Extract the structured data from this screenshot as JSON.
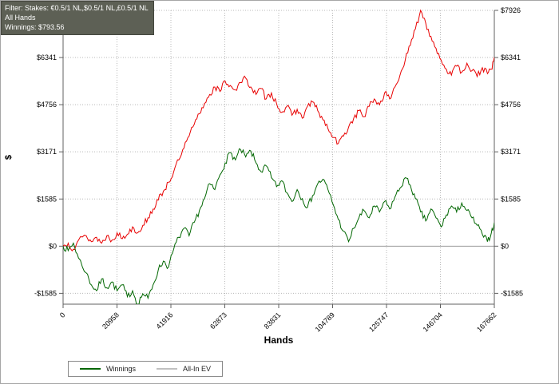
{
  "info_box": {
    "filter_line": "Filter: Stakes: €0.5/1 NL,$0.5/1 NL,£0.5/1 NL",
    "hands_line": "All Hands",
    "winnings_line": "Winnings: $793.56",
    "background": "#5d6055",
    "text_color": "#ffffff"
  },
  "chart_data": {
    "type": "line",
    "title": "",
    "xlabel": "Hands",
    "ylabel": "$",
    "xlim": [
      0,
      167662
    ],
    "ylim": [
      -1950,
      7926
    ],
    "x_ticks": [
      0,
      20958,
      41916,
      62873,
      83831,
      104789,
      125747,
      146704,
      167662
    ],
    "x_tick_labels": [
      "0",
      "20958",
      "41916",
      "62873",
      "83831",
      "104789",
      "125747",
      "146704",
      "167662"
    ],
    "y_ticks": [
      -1585,
      0,
      1585,
      3171,
      4756,
      6341,
      7926
    ],
    "y_tick_labels": [
      "-$1585",
      "$0",
      "$1585",
      "$3171",
      "$4756",
      "$6341",
      "$7926"
    ],
    "grid": "dotted",
    "zero_line": true,
    "legend_position": "bottom-left",
    "noise_amplitude": 110,
    "colors": {
      "grid": "#b8b8b8",
      "axis": "#606060",
      "zero_line": "#999999",
      "tick_text": "#000000"
    },
    "series": [
      {
        "name": "Winnings",
        "color": "#006600",
        "legend_color": "#006600",
        "final_value": 793.56,
        "x": [
          0,
          2000,
          4000,
          6000,
          9000,
          11000,
          13000,
          15000,
          17000,
          19000,
          21000,
          23000,
          25000,
          27000,
          29000,
          31000,
          33000,
          35000,
          37000,
          39000,
          41000,
          43000,
          45000,
          47000,
          49000,
          51000,
          53000,
          55000,
          57000,
          59000,
          61000,
          63000,
          65000,
          67000,
          69000,
          71000,
          73000,
          75000,
          77000,
          79000,
          81000,
          83000,
          85000,
          87000,
          89000,
          91000,
          93000,
          95000,
          97000,
          99000,
          101000,
          103000,
          105000,
          107000,
          109000,
          111000,
          113000,
          115000,
          117000,
          119000,
          121000,
          123000,
          125000,
          127000,
          129000,
          131000,
          133000,
          135000,
          137000,
          139000,
          141000,
          143000,
          145000,
          147000,
          149000,
          151000,
          153000,
          155000,
          157000,
          159000,
          161000,
          163000,
          165000,
          166500,
          167662
        ],
        "y": [
          0,
          -150,
          100,
          -400,
          -900,
          -1300,
          -1500,
          -1100,
          -1400,
          -1200,
          -1500,
          -1300,
          -1700,
          -1500,
          -1950,
          -1600,
          -1750,
          -1300,
          -800,
          -500,
          -700,
          -100,
          300,
          600,
          350,
          800,
          1200,
          1600,
          2100,
          1900,
          2400,
          2800,
          3150,
          2900,
          3250,
          3000,
          3200,
          2800,
          2500,
          2700,
          2300,
          2000,
          2200,
          1800,
          1500,
          1900,
          1600,
          1300,
          1700,
          2100,
          2250,
          1900,
          1400,
          900,
          500,
          150,
          600,
          950,
          1200,
          950,
          1350,
          1150,
          1500,
          1250,
          1650,
          1950,
          2300,
          2050,
          1600,
          1150,
          850,
          1250,
          950,
          650,
          1050,
          1350,
          1150,
          1450,
          1200,
          950,
          700,
          400,
          150,
          450,
          794
        ]
      },
      {
        "name": "All-In EV",
        "color": "#e80000",
        "legend_color": "#c0c0c0",
        "x": [
          0,
          2000,
          4000,
          6000,
          9000,
          11000,
          13000,
          15000,
          17000,
          19000,
          21000,
          23000,
          25000,
          27000,
          29000,
          31000,
          33000,
          35000,
          37000,
          39000,
          41000,
          43000,
          45000,
          47000,
          49000,
          51000,
          53000,
          55000,
          57000,
          59000,
          61000,
          63000,
          65000,
          67000,
          69000,
          71000,
          73000,
          75000,
          77000,
          79000,
          81000,
          83000,
          85000,
          87000,
          89000,
          91000,
          93000,
          95000,
          97000,
          99000,
          101000,
          103000,
          105000,
          107000,
          109000,
          111000,
          113000,
          115000,
          117000,
          119000,
          121000,
          123000,
          125000,
          127000,
          129000,
          131000,
          133000,
          135000,
          137000,
          139000,
          141000,
          143000,
          145000,
          147000,
          149000,
          151000,
          153000,
          155000,
          157000,
          159000,
          161000,
          163000,
          165000,
          166500,
          167662
        ],
        "y": [
          0,
          100,
          -100,
          200,
          350,
          150,
          300,
          100,
          350,
          200,
          450,
          250,
          400,
          650,
          450,
          700,
          950,
          1250,
          1550,
          1850,
          2150,
          2500,
          2900,
          3300,
          3700,
          4100,
          4450,
          4800,
          5100,
          5350,
          5200,
          5550,
          5400,
          5250,
          5500,
          5650,
          5350,
          5100,
          5300,
          4950,
          5150,
          4800,
          4500,
          4700,
          4400,
          4600,
          4300,
          4700,
          4850,
          4550,
          4250,
          3950,
          3650,
          3450,
          3700,
          4000,
          4300,
          4550,
          4350,
          4700,
          4950,
          4750,
          5150,
          4950,
          5350,
          5750,
          6250,
          6750,
          7300,
          7926,
          7500,
          7050,
          6650,
          6250,
          5950,
          5750,
          6050,
          5850,
          6150,
          5900,
          5700,
          6000,
          5800,
          5950,
          6350
        ]
      }
    ]
  },
  "legend": {
    "items": [
      {
        "label": "Winnings"
      },
      {
        "label": "All-In EV"
      }
    ]
  }
}
